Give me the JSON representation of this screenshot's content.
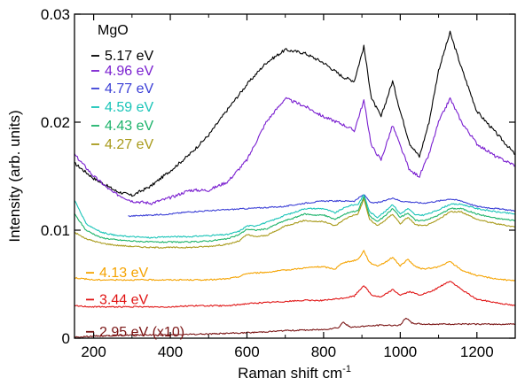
{
  "chart_data": {
    "type": "line",
    "title": "",
    "xlabel": "Raman shift cm",
    "xlabel_sup": "-1",
    "ylabel": "Intensity (arb. units)",
    "xlim": [
      150,
      1300
    ],
    "ylim": [
      0,
      0.03
    ],
    "x_ticks": [
      200,
      400,
      600,
      800,
      1000,
      1200
    ],
    "y_ticks": [
      {
        "value": 0,
        "label": "0"
      },
      {
        "value": 0.01,
        "label": "0.01"
      },
      {
        "value": 0.02,
        "label": "0.02"
      },
      {
        "value": 0.03,
        "label": "0.03"
      }
    ],
    "grid": false,
    "legend_heading": "MgO",
    "legend_placement": "top-left",
    "series": [
      {
        "name": "5.17 eV",
        "color": "#000000",
        "x": [
          150,
          200,
          260,
          300,
          350,
          400,
          450,
          500,
          550,
          600,
          650,
          700,
          750,
          800,
          850,
          880,
          905,
          925,
          950,
          980,
          1000,
          1025,
          1050,
          1075,
          1100,
          1130,
          1160,
          1200,
          1250,
          1300
        ],
        "y": [
          0.0162,
          0.0148,
          0.0136,
          0.0132,
          0.0141,
          0.0155,
          0.017,
          0.0188,
          0.0212,
          0.0235,
          0.0255,
          0.0267,
          0.0264,
          0.0255,
          0.0242,
          0.0238,
          0.027,
          0.0222,
          0.0205,
          0.0238,
          0.021,
          0.018,
          0.0168,
          0.02,
          0.0248,
          0.0283,
          0.025,
          0.021,
          0.019,
          0.017
        ]
      },
      {
        "name": "4.96 eV",
        "color": "#7a1fd0",
        "x": [
          150,
          200,
          250,
          300,
          350,
          400,
          450,
          500,
          550,
          600,
          650,
          700,
          750,
          800,
          850,
          880,
          905,
          925,
          950,
          980,
          1000,
          1025,
          1050,
          1075,
          1100,
          1130,
          1160,
          1200,
          1250,
          1300
        ],
        "y": [
          0.017,
          0.015,
          0.0135,
          0.0127,
          0.0125,
          0.013,
          0.0137,
          0.0137,
          0.0145,
          0.0165,
          0.02,
          0.0222,
          0.0215,
          0.0205,
          0.0198,
          0.0192,
          0.022,
          0.0178,
          0.0165,
          0.0197,
          0.0178,
          0.0155,
          0.015,
          0.017,
          0.02,
          0.0222,
          0.02,
          0.018,
          0.0168,
          0.016
        ]
      },
      {
        "name": "4.77 eV",
        "color": "#3b3fd6",
        "x": [
          290,
          350,
          400,
          450,
          500,
          550,
          600,
          650,
          700,
          750,
          800,
          850,
          880,
          905,
          925,
          950,
          980,
          1000,
          1030,
          1060,
          1100,
          1130,
          1160,
          1200,
          1250,
          1300
        ],
        "y": [
          0.0113,
          0.0114,
          0.0115,
          0.0117,
          0.0118,
          0.0119,
          0.012,
          0.0121,
          0.0122,
          0.0125,
          0.0127,
          0.0127,
          0.0127,
          0.0133,
          0.0125,
          0.0126,
          0.013,
          0.0127,
          0.0126,
          0.0125,
          0.0127,
          0.0129,
          0.0127,
          0.0122,
          0.012,
          0.0118
        ]
      },
      {
        "name": "4.59 eV",
        "color": "#19c4b8",
        "x": [
          150,
          180,
          220,
          260,
          300,
          350,
          400,
          450,
          500,
          550,
          580,
          600,
          620,
          650,
          680,
          700,
          720,
          750,
          780,
          800,
          830,
          850,
          870,
          890,
          905,
          920,
          940,
          960,
          980,
          1000,
          1020,
          1040,
          1060,
          1080,
          1100,
          1130,
          1160,
          1200,
          1250,
          1300
        ],
        "y": [
          0.0128,
          0.0106,
          0.0098,
          0.0095,
          0.0094,
          0.0093,
          0.0094,
          0.0094,
          0.0095,
          0.0096,
          0.0099,
          0.0104,
          0.0104,
          0.0107,
          0.0111,
          0.0114,
          0.0116,
          0.012,
          0.012,
          0.012,
          0.0116,
          0.012,
          0.0123,
          0.0124,
          0.0133,
          0.0117,
          0.0112,
          0.0117,
          0.0124,
          0.0115,
          0.012,
          0.0114,
          0.0114,
          0.0116,
          0.0119,
          0.0124,
          0.0124,
          0.012,
          0.0117,
          0.0115
        ]
      },
      {
        "name": "4.43 eV",
        "color": "#1cb36a",
        "x": [
          150,
          180,
          220,
          260,
          300,
          350,
          400,
          450,
          500,
          550,
          580,
          600,
          620,
          650,
          680,
          700,
          720,
          750,
          780,
          800,
          830,
          850,
          870,
          890,
          905,
          920,
          940,
          960,
          980,
          1000,
          1020,
          1040,
          1060,
          1080,
          1100,
          1130,
          1160,
          1200,
          1250,
          1300
        ],
        "y": [
          0.0115,
          0.01,
          0.0093,
          0.0091,
          0.009,
          0.0089,
          0.0089,
          0.0089,
          0.009,
          0.0092,
          0.0096,
          0.0101,
          0.01,
          0.0101,
          0.0106,
          0.0109,
          0.0111,
          0.0115,
          0.0114,
          0.0114,
          0.011,
          0.0114,
          0.0117,
          0.0118,
          0.0131,
          0.0113,
          0.0108,
          0.0113,
          0.012,
          0.0112,
          0.0116,
          0.0109,
          0.0109,
          0.0111,
          0.0114,
          0.012,
          0.012,
          0.0115,
          0.0111,
          0.0109
        ]
      },
      {
        "name": "4.27 eV",
        "color": "#a89a1a",
        "x": [
          150,
          180,
          220,
          260,
          300,
          350,
          400,
          450,
          500,
          550,
          580,
          600,
          620,
          650,
          680,
          700,
          720,
          750,
          780,
          800,
          830,
          850,
          870,
          890,
          905,
          920,
          940,
          960,
          980,
          1000,
          1020,
          1040,
          1060,
          1080,
          1100,
          1130,
          1160,
          1200,
          1250,
          1300
        ],
        "y": [
          0.0098,
          0.0092,
          0.0088,
          0.0086,
          0.0085,
          0.0084,
          0.0084,
          0.0084,
          0.0085,
          0.0087,
          0.009,
          0.0096,
          0.0094,
          0.0095,
          0.01,
          0.0104,
          0.0106,
          0.0109,
          0.0108,
          0.0108,
          0.0104,
          0.0109,
          0.0113,
          0.0115,
          0.0129,
          0.011,
          0.0104,
          0.0109,
          0.0115,
          0.0106,
          0.0112,
          0.0105,
          0.0104,
          0.0106,
          0.011,
          0.0117,
          0.0117,
          0.011,
          0.0106,
          0.0103
        ]
      },
      {
        "name": "4.13 eV",
        "color": "#f5a300",
        "x": [
          150,
          200,
          250,
          300,
          350,
          400,
          450,
          500,
          550,
          580,
          600,
          650,
          700,
          750,
          780,
          800,
          830,
          850,
          870,
          890,
          905,
          920,
          940,
          960,
          980,
          1000,
          1020,
          1040,
          1060,
          1100,
          1130,
          1160,
          1200,
          1250,
          1300
        ],
        "y": [
          0.0056,
          0.0054,
          0.0054,
          0.0054,
          0.0054,
          0.0054,
          0.0054,
          0.0054,
          0.0055,
          0.0057,
          0.006,
          0.0061,
          0.0063,
          0.0065,
          0.0066,
          0.0066,
          0.0064,
          0.007,
          0.0071,
          0.0073,
          0.0081,
          0.007,
          0.0067,
          0.007,
          0.0075,
          0.0067,
          0.0073,
          0.0066,
          0.0064,
          0.0066,
          0.0071,
          0.0063,
          0.0058,
          0.0055,
          0.0053
        ]
      },
      {
        "name": "3.44 eV",
        "color": "#e01414",
        "x": [
          150,
          200,
          250,
          300,
          350,
          400,
          450,
          500,
          550,
          600,
          650,
          700,
          750,
          800,
          850,
          880,
          905,
          925,
          950,
          980,
          1000,
          1025,
          1050,
          1080,
          1100,
          1130,
          1160,
          1200,
          1250,
          1300
        ],
        "y": [
          0.003,
          0.0029,
          0.0029,
          0.0029,
          0.0029,
          0.0029,
          0.003,
          0.003,
          0.003,
          0.0032,
          0.0033,
          0.0034,
          0.0035,
          0.0035,
          0.0037,
          0.0039,
          0.0049,
          0.004,
          0.0038,
          0.0045,
          0.004,
          0.0043,
          0.004,
          0.0043,
          0.0047,
          0.0053,
          0.0045,
          0.0036,
          0.0033,
          0.003
        ]
      },
      {
        "name": "2.95 eV (x10)",
        "color": "#7a1414",
        "x": [
          150,
          200,
          300,
          400,
          500,
          600,
          700,
          800,
          840,
          850,
          870,
          900,
          950,
          1000,
          1015,
          1030,
          1060,
          1100,
          1150,
          1200,
          1250,
          1300
        ],
        "y": [
          0.0001,
          0.0002,
          0.0003,
          0.0003,
          0.0004,
          0.0005,
          0.0007,
          0.0008,
          0.001,
          0.0015,
          0.001,
          0.0011,
          0.0012,
          0.0012,
          0.0019,
          0.0014,
          0.0013,
          0.0013,
          0.0013,
          0.0013,
          0.0013,
          0.0013
        ]
      }
    ]
  }
}
